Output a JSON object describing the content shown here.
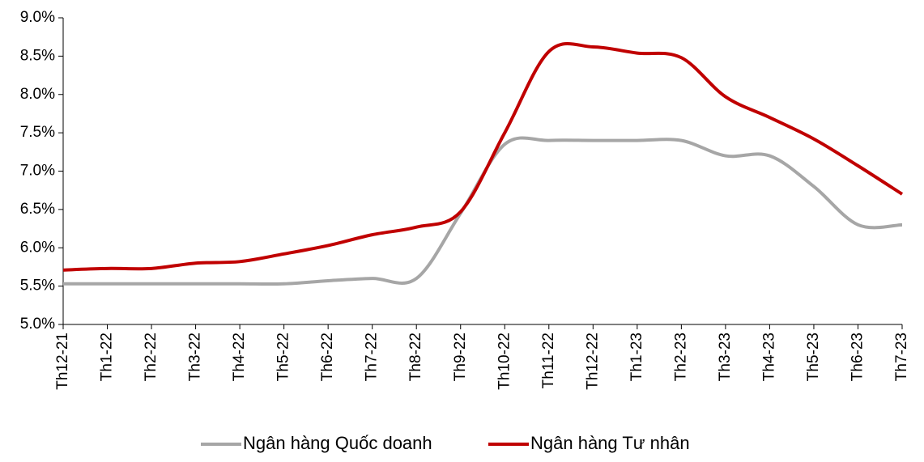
{
  "chart_data": {
    "type": "line",
    "categories": [
      "Th12-21",
      "Th1-22",
      "Th2-22",
      "Th3-22",
      "Th4-22",
      "Th5-22",
      "Th6-22",
      "Th7-22",
      "Th8-22",
      "Th9-22",
      "Th10-22",
      "Th11-22",
      "Th12-22",
      "Th1-23",
      "Th2-23",
      "Th3-23",
      "Th4-23",
      "Th5-23",
      "Th6-23",
      "Th7-23"
    ],
    "series": [
      {
        "name": "Ngân hàng Quốc doanh",
        "color": "#a6a6a6",
        "values": [
          5.53,
          5.53,
          5.53,
          5.53,
          5.53,
          5.53,
          5.57,
          5.6,
          5.6,
          6.45,
          7.35,
          7.4,
          7.4,
          7.4,
          7.4,
          7.2,
          7.2,
          6.8,
          6.3,
          6.3
        ]
      },
      {
        "name": "Ngân hàng Tư nhân",
        "color": "#c00000",
        "values": [
          5.71,
          5.73,
          5.73,
          5.8,
          5.82,
          5.92,
          6.03,
          6.17,
          6.27,
          6.47,
          7.5,
          8.56,
          8.62,
          8.54,
          8.48,
          7.97,
          7.7,
          7.42,
          7.07,
          6.7
        ]
      }
    ],
    "ylim": [
      5,
      9
    ],
    "yticks": [
      {
        "value": 5,
        "label": "5.0%"
      },
      {
        "value": 5.5,
        "label": "5.5%"
      },
      {
        "value": 6,
        "label": "6.0%"
      },
      {
        "value": 6.5,
        "label": "6.5%"
      },
      {
        "value": 7,
        "label": "7.0%"
      },
      {
        "value": 7.5,
        "label": "7.5%"
      },
      {
        "value": 8,
        "label": "8.0%"
      },
      {
        "value": 8.5,
        "label": "8.5%"
      },
      {
        "value": 9,
        "label": "9.0%"
      }
    ],
    "grid": false,
    "legend": "bottom"
  }
}
